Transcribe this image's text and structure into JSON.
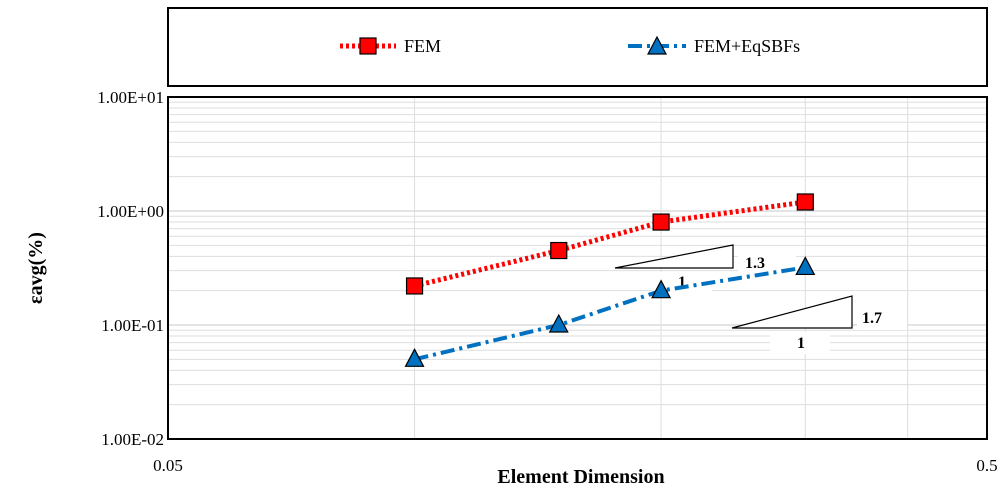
{
  "chart_data": {
    "type": "line",
    "xlabel": "Element Dimension",
    "ylabel": "εavg(%)",
    "x_scale": "log",
    "y_scale": "log",
    "xlim": [
      0.05,
      0.5
    ],
    "ylim": [
      0.01,
      10
    ],
    "x_tick_labels": [
      "0.05",
      "0.5"
    ],
    "y_tick_labels": [
      "1.00E-02",
      "1.00E-01",
      "1.00E+00",
      "1.00E+01"
    ],
    "grid": true,
    "legend_position": "top",
    "series": [
      {
        "name": "FEM",
        "color": "#ff0000",
        "marker": "square",
        "line_style": "dotted",
        "x": [
          0.1,
          0.15,
          0.2,
          0.3
        ],
        "y": [
          0.22,
          0.45,
          0.8,
          1.2
        ]
      },
      {
        "name": "FEM+EqSBFs",
        "color": "#0070c0",
        "marker": "triangle",
        "line_style": "dash-dot",
        "x": [
          0.1,
          0.15,
          0.2,
          0.3
        ],
        "y": [
          0.05,
          0.1,
          0.2,
          0.32
        ]
      }
    ],
    "annotations": [
      {
        "run_label": "1",
        "rise_label": "1.3"
      },
      {
        "run_label": "1",
        "rise_label": "1.7"
      }
    ]
  }
}
